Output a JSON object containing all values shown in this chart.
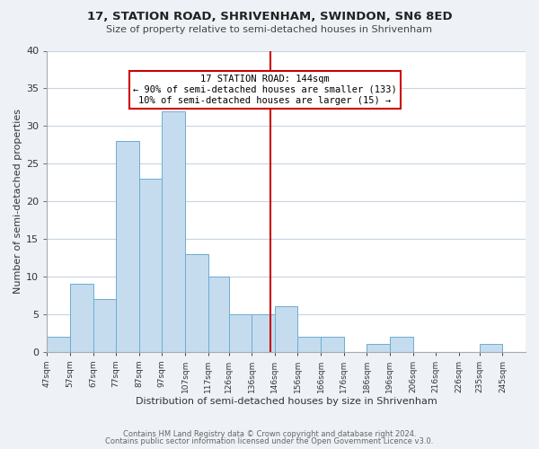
{
  "title1": "17, STATION ROAD, SHRIVENHAM, SWINDON, SN6 8ED",
  "title2": "Size of property relative to semi-detached houses in Shrivenham",
  "xlabel": "Distribution of semi-detached houses by size in Shrivenham",
  "ylabel": "Number of semi-detached properties",
  "bin_labels": [
    "47sqm",
    "57sqm",
    "67sqm",
    "77sqm",
    "87sqm",
    "97sqm",
    "107sqm",
    "117sqm",
    "126sqm",
    "136sqm",
    "146sqm",
    "156sqm",
    "166sqm",
    "176sqm",
    "186sqm",
    "196sqm",
    "206sqm",
    "216sqm",
    "226sqm",
    "235sqm",
    "245sqm"
  ],
  "bin_left_edges": [
    47,
    57,
    67,
    77,
    87,
    97,
    107,
    117,
    126,
    136,
    146,
    156,
    166,
    176,
    186,
    196,
    206,
    216,
    226,
    235,
    245
  ],
  "bin_widths": [
    10,
    10,
    10,
    10,
    10,
    10,
    10,
    9,
    10,
    10,
    10,
    10,
    10,
    10,
    10,
    10,
    10,
    10,
    9,
    10,
    10
  ],
  "counts": [
    2,
    9,
    7,
    28,
    23,
    32,
    13,
    10,
    5,
    5,
    6,
    2,
    2,
    0,
    1,
    2,
    0,
    0,
    0,
    1,
    0
  ],
  "bar_color": "#c5dcee",
  "bar_edge_color": "#6aadd5",
  "highlight_x": 144,
  "highlight_line_color": "#cc0000",
  "annotation_title": "17 STATION ROAD: 144sqm",
  "annotation_line1": "← 90% of semi-detached houses are smaller (133)",
  "annotation_line2": "10% of semi-detached houses are larger (15) →",
  "annotation_box_edge": "#cc0000",
  "ylim": [
    0,
    40
  ],
  "yticks": [
    0,
    5,
    10,
    15,
    20,
    25,
    30,
    35,
    40
  ],
  "xlim_left": 47,
  "xlim_right": 255,
  "footer1": "Contains HM Land Registry data © Crown copyright and database right 2024.",
  "footer2": "Contains public sector information licensed under the Open Government Licence v3.0.",
  "bg_color": "#eef2f7",
  "plot_bg_color": "#ffffff",
  "grid_color": "#c8d4e0"
}
